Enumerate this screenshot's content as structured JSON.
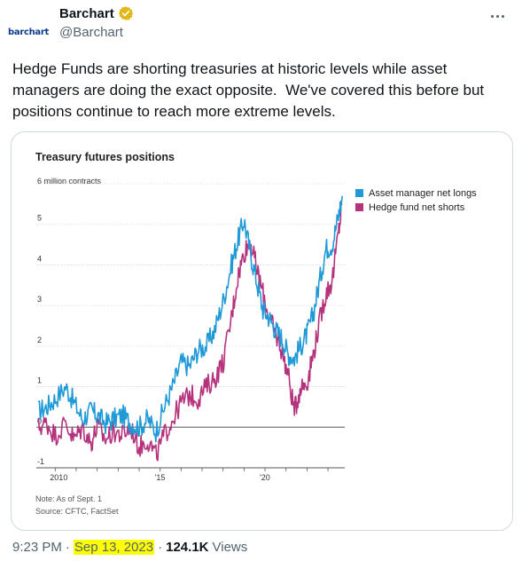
{
  "author": {
    "avatar_text": "barchart",
    "display_name": "Barchart",
    "handle": "@Barchart",
    "verified_color": "#e2b719"
  },
  "tweet": {
    "text": "Hedge Funds are shorting treasuries at historic levels while asset managers are doing the exact opposite.  We've covered this before but positions continue to reach more extreme levels."
  },
  "footer": {
    "time": "9:23 PM",
    "sep1": "·",
    "date": "Sep 13, 2023",
    "sep2": "·",
    "views_count": "124.1K",
    "views_label": "Views"
  },
  "chart_data": {
    "type": "line",
    "title": "Treasury futures positions",
    "ylabel": "6 million contracts",
    "y_ticks": [
      "5",
      "4",
      "3",
      "2",
      "1",
      "0",
      "-1"
    ],
    "x_ticks": [
      "2010",
      "'15",
      "'20"
    ],
    "ylim": [
      -1,
      6
    ],
    "xlim": [
      2009.1,
      2023.8
    ],
    "x_tick_values": [
      2010,
      2015,
      2020
    ],
    "legend_position": "top-right",
    "note": "Note: As of Sept. 1",
    "source": "Source: CFTC, FactSet",
    "series": [
      {
        "name": "Asset manager net longs",
        "color": "#1f9ad6",
        "x": [
          2009.2,
          2009.6,
          2010.0,
          2010.5,
          2010.9,
          2011.3,
          2011.7,
          2012.0,
          2012.4,
          2012.8,
          2013.2,
          2013.6,
          2014.0,
          2014.4,
          2014.8,
          2015.2,
          2015.6,
          2016.0,
          2016.4,
          2016.8,
          2017.2,
          2017.6,
          2018.0,
          2018.4,
          2018.7,
          2019.0,
          2019.3,
          2019.6,
          2019.9,
          2020.2,
          2020.5,
          2020.8,
          2021.1,
          2021.4,
          2021.7,
          2022.0,
          2022.3,
          2022.6,
          2022.9,
          2023.2,
          2023.5,
          2023.68
        ],
        "values": [
          0.4,
          0.5,
          0.7,
          1.0,
          0.6,
          0.2,
          0.4,
          0.3,
          0.1,
          0.2,
          0.3,
          0.1,
          0.0,
          0.2,
          -0.1,
          0.5,
          1.0,
          1.6,
          1.5,
          1.9,
          2.0,
          2.4,
          3.1,
          4.0,
          4.6,
          5.1,
          4.3,
          3.6,
          2.9,
          2.7,
          2.4,
          2.2,
          1.8,
          1.7,
          2.0,
          2.3,
          2.8,
          3.6,
          4.4,
          4.5,
          5.2,
          5.7
        ]
      },
      {
        "name": "Hedge fund net shorts",
        "color": "#b5327d",
        "x": [
          2009.2,
          2009.6,
          2010.0,
          2010.5,
          2010.9,
          2011.3,
          2011.7,
          2012.0,
          2012.4,
          2012.8,
          2013.2,
          2013.6,
          2014.0,
          2014.4,
          2014.8,
          2015.2,
          2015.6,
          2016.0,
          2016.4,
          2016.8,
          2017.2,
          2017.6,
          2018.0,
          2018.4,
          2018.7,
          2019.0,
          2019.3,
          2019.6,
          2019.9,
          2020.2,
          2020.5,
          2020.8,
          2021.1,
          2021.4,
          2021.7,
          2022.0,
          2022.3,
          2022.6,
          2022.9,
          2023.2,
          2023.5,
          2023.68
        ],
        "values": [
          0.0,
          0.1,
          -0.2,
          0.1,
          -0.3,
          0.0,
          -0.4,
          0.0,
          -0.3,
          -0.1,
          -0.2,
          0.0,
          -0.5,
          -0.3,
          -0.7,
          -0.2,
          0.2,
          0.6,
          0.8,
          0.7,
          1.0,
          1.2,
          1.6,
          2.7,
          3.7,
          4.3,
          4.6,
          3.9,
          3.3,
          2.7,
          2.3,
          1.9,
          1.3,
          0.4,
          1.0,
          1.1,
          1.8,
          2.6,
          3.3,
          3.6,
          4.8,
          5.5
        ]
      }
    ]
  }
}
